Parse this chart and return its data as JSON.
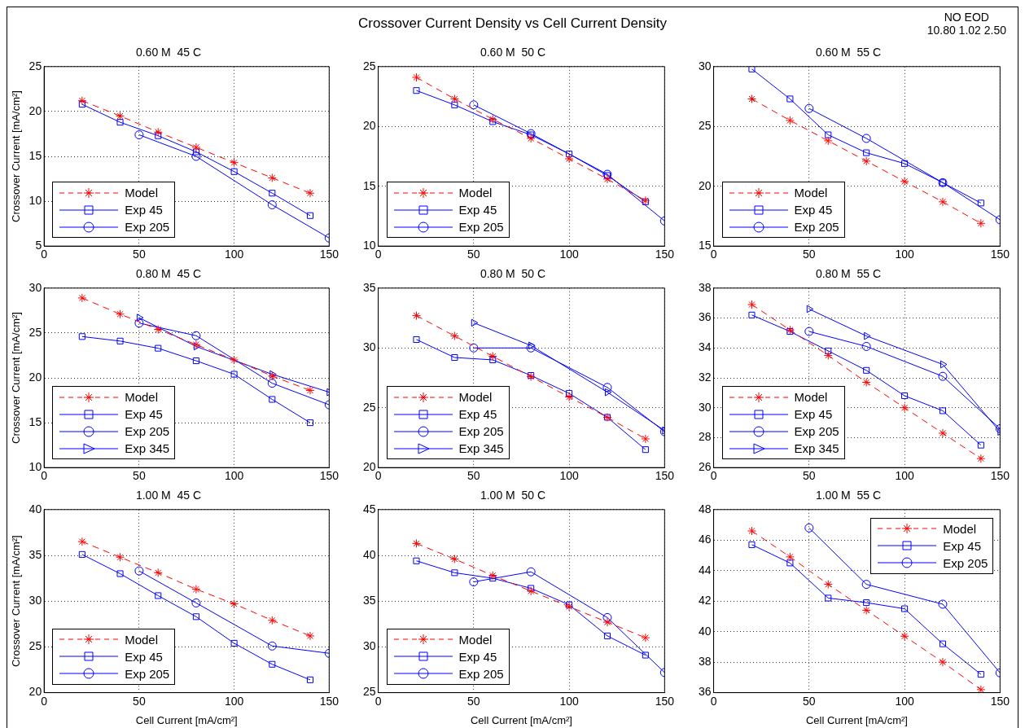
{
  "chart_data": [
    {
      "type": "line",
      "title": "0.60 M  45 C",
      "annotations": [
        "Crossover Current Density vs Cell Current Density"
      ],
      "ylabel": "Crossover Current [mA/cm²]",
      "xlim": [
        0,
        150
      ],
      "xticks": [
        0,
        50,
        100,
        150
      ],
      "ylim": [
        5,
        25
      ],
      "yticks": [
        5,
        10,
        15,
        20,
        25
      ],
      "grid": true,
      "legend": "bottom left",
      "series": [
        {
          "name": "Model",
          "color": "#ff0000",
          "marker": "cross",
          "line_style": "dashed",
          "x": [
            20,
            40,
            60,
            80,
            100,
            120,
            140
          ],
          "values": [
            21.2,
            19.5,
            17.7,
            16.0,
            14.3,
            12.6,
            10.9
          ]
        },
        {
          "name": "Exp 45",
          "color": "#0000ff",
          "marker": "square",
          "line_style": "solid",
          "x": [
            20,
            40,
            60,
            80,
            100,
            120,
            140
          ],
          "values": [
            20.8,
            18.8,
            17.3,
            15.5,
            13.3,
            10.9,
            8.4
          ]
        },
        {
          "name": "Exp 205",
          "color": "#0000ff",
          "marker": "circle",
          "line_style": "solid",
          "x": [
            50,
            80,
            120,
            150
          ],
          "values": [
            17.4,
            15.0,
            9.6,
            5.9
          ]
        }
      ]
    },
    {
      "type": "line",
      "title": "0.60 M  50 C",
      "xlim": [
        0,
        150
      ],
      "xticks": [
        0,
        50,
        100,
        150
      ],
      "ylim": [
        10,
        25
      ],
      "yticks": [
        10,
        15,
        20,
        25
      ],
      "grid": true,
      "legend": "bottom left",
      "series": [
        {
          "name": "Model",
          "color": "#ff0000",
          "marker": "cross",
          "line_style": "dashed",
          "x": [
            20,
            40,
            60,
            80,
            100,
            120,
            140
          ],
          "values": [
            24.1,
            22.3,
            20.6,
            19.0,
            17.3,
            15.6,
            13.8
          ]
        },
        {
          "name": "Exp 45",
          "color": "#0000ff",
          "marker": "square",
          "line_style": "solid",
          "x": [
            20,
            40,
            60,
            80,
            100,
            120,
            140
          ],
          "values": [
            23.0,
            21.8,
            20.4,
            19.3,
            17.7,
            15.9,
            13.7
          ]
        },
        {
          "name": "Exp 205",
          "color": "#0000ff",
          "marker": "circle",
          "line_style": "solid",
          "x": [
            50,
            80,
            120,
            150
          ],
          "values": [
            21.8,
            19.4,
            16.0,
            12.1
          ]
        }
      ]
    },
    {
      "type": "line",
      "title": "0.60 M  55 C",
      "annotations": [
        "NO EOD",
        "10.80  1.02  2.50"
      ],
      "xlim": [
        0,
        150
      ],
      "xticks": [
        0,
        50,
        100,
        150
      ],
      "ylim": [
        15,
        30
      ],
      "yticks": [
        15,
        20,
        25,
        30
      ],
      "grid": true,
      "legend": "bottom left",
      "series": [
        {
          "name": "Model",
          "color": "#ff0000",
          "marker": "cross",
          "line_style": "dashed",
          "x": [
            20,
            40,
            60,
            80,
            100,
            120,
            140
          ],
          "values": [
            27.3,
            25.5,
            23.8,
            22.1,
            20.4,
            18.7,
            16.9
          ]
        },
        {
          "name": "Exp 45",
          "color": "#0000ff",
          "marker": "square",
          "line_style": "solid",
          "x": [
            20,
            40,
            60,
            80,
            100,
            120,
            140
          ],
          "values": [
            29.8,
            27.3,
            24.3,
            22.8,
            21.9,
            20.3,
            18.6
          ]
        },
        {
          "name": "Exp 205",
          "color": "#0000ff",
          "marker": "circle",
          "line_style": "solid",
          "x": [
            50,
            80,
            120,
            150
          ],
          "values": [
            26.5,
            24.0,
            20.3,
            17.2
          ]
        }
      ]
    },
    {
      "type": "line",
      "title": "0.80 M  45 C",
      "ylabel": "Crossover Current [mA/cm²]",
      "xlim": [
        0,
        150
      ],
      "xticks": [
        0,
        50,
        100,
        150
      ],
      "ylim": [
        10,
        30
      ],
      "yticks": [
        10,
        15,
        20,
        25,
        30
      ],
      "grid": true,
      "legend": "bottom left",
      "series": [
        {
          "name": "Model",
          "color": "#ff0000",
          "marker": "cross",
          "line_style": "dashed",
          "x": [
            20,
            40,
            60,
            80,
            100,
            120,
            140
          ],
          "values": [
            28.9,
            27.1,
            25.4,
            23.7,
            22.0,
            20.2,
            18.6
          ]
        },
        {
          "name": "Exp 45",
          "color": "#0000ff",
          "marker": "square",
          "line_style": "solid",
          "x": [
            20,
            40,
            60,
            80,
            100,
            120,
            140
          ],
          "values": [
            24.6,
            24.1,
            23.3,
            21.9,
            20.4,
            17.6,
            15.0
          ]
        },
        {
          "name": "Exp 205",
          "color": "#0000ff",
          "marker": "circle",
          "line_style": "solid",
          "x": [
            50,
            80,
            120,
            150
          ],
          "values": [
            26.1,
            24.7,
            19.4,
            17.0
          ]
        },
        {
          "name": "Exp 345",
          "color": "#0000ff",
          "marker": "triangle",
          "line_style": "solid",
          "x": [
            50,
            80,
            120,
            150
          ],
          "values": [
            26.7,
            23.5,
            20.4,
            18.4
          ]
        }
      ]
    },
    {
      "type": "line",
      "title": "0.80 M  50 C",
      "xlim": [
        0,
        150
      ],
      "xticks": [
        0,
        50,
        100,
        150
      ],
      "ylim": [
        20,
        35
      ],
      "yticks": [
        20,
        25,
        30,
        35
      ],
      "grid": true,
      "legend": "bottom left",
      "series": [
        {
          "name": "Model",
          "color": "#ff0000",
          "marker": "cross",
          "line_style": "dashed",
          "x": [
            20,
            40,
            60,
            80,
            100,
            120,
            140
          ],
          "values": [
            32.7,
            31.0,
            29.3,
            27.6,
            25.9,
            24.2,
            22.4
          ]
        },
        {
          "name": "Exp 45",
          "color": "#0000ff",
          "marker": "square",
          "line_style": "solid",
          "x": [
            20,
            40,
            60,
            80,
            100,
            120,
            140
          ],
          "values": [
            30.7,
            29.2,
            29.0,
            27.7,
            26.2,
            24.2,
            21.5
          ]
        },
        {
          "name": "Exp 205",
          "color": "#0000ff",
          "marker": "circle",
          "line_style": "solid",
          "x": [
            50,
            80,
            120,
            150
          ],
          "values": [
            30.0,
            30.0,
            26.7,
            23.0
          ]
        },
        {
          "name": "Exp 345",
          "color": "#0000ff",
          "marker": "triangle",
          "line_style": "solid",
          "x": [
            50,
            80,
            120,
            150
          ],
          "values": [
            32.1,
            30.2,
            26.3,
            23.1
          ]
        }
      ]
    },
    {
      "type": "line",
      "title": "0.80 M  55 C",
      "xlim": [
        0,
        150
      ],
      "xticks": [
        0,
        50,
        100,
        150
      ],
      "ylim": [
        26,
        38
      ],
      "yticks": [
        26,
        28,
        30,
        32,
        34,
        36,
        38
      ],
      "grid": true,
      "legend": "bottom left",
      "series": [
        {
          "name": "Model",
          "color": "#ff0000",
          "marker": "cross",
          "line_style": "dashed",
          "x": [
            20,
            40,
            60,
            80,
            100,
            120,
            140
          ],
          "values": [
            36.9,
            35.2,
            33.5,
            31.7,
            30.0,
            28.3,
            26.6
          ]
        },
        {
          "name": "Exp 45",
          "color": "#0000ff",
          "marker": "square",
          "line_style": "solid",
          "x": [
            20,
            40,
            60,
            80,
            100,
            120,
            140
          ],
          "values": [
            36.2,
            35.1,
            33.8,
            32.5,
            30.8,
            29.8,
            27.5
          ]
        },
        {
          "name": "Exp 205",
          "color": "#0000ff",
          "marker": "circle",
          "line_style": "solid",
          "x": [
            50,
            80,
            120,
            150
          ],
          "values": [
            35.1,
            34.1,
            32.1,
            28.6
          ]
        },
        {
          "name": "Exp 345",
          "color": "#0000ff",
          "marker": "triangle",
          "line_style": "solid",
          "x": [
            50,
            80,
            120,
            150
          ],
          "values": [
            36.6,
            34.8,
            32.9,
            28.4
          ]
        }
      ]
    },
    {
      "type": "line",
      "title": "1.00 M  45 C",
      "ylabel": "Crossover Current [mA/cm²]",
      "xlabel": "Cell Current [mA/cm²]",
      "xlim": [
        0,
        150
      ],
      "xticks": [
        0,
        50,
        100,
        150
      ],
      "ylim": [
        20,
        40
      ],
      "yticks": [
        20,
        25,
        30,
        35,
        40
      ],
      "grid": true,
      "legend": "bottom left",
      "series": [
        {
          "name": "Model",
          "color": "#ff0000",
          "marker": "cross",
          "line_style": "dashed",
          "x": [
            20,
            40,
            60,
            80,
            100,
            120,
            140
          ],
          "values": [
            36.5,
            34.8,
            33.1,
            31.3,
            29.7,
            27.9,
            26.2
          ]
        },
        {
          "name": "Exp 45",
          "color": "#0000ff",
          "marker": "square",
          "line_style": "solid",
          "x": [
            20,
            40,
            60,
            80,
            100,
            120,
            140
          ],
          "values": [
            35.1,
            33.0,
            30.6,
            28.3,
            25.4,
            23.1,
            21.4
          ]
        },
        {
          "name": "Exp 205",
          "color": "#0000ff",
          "marker": "circle",
          "line_style": "solid",
          "x": [
            50,
            80,
            120,
            150
          ],
          "values": [
            33.3,
            29.8,
            25.1,
            24.3
          ]
        }
      ]
    },
    {
      "type": "line",
      "title": "1.00 M  50 C",
      "xlabel": "Cell Current [mA/cm²]",
      "xlim": [
        0,
        150
      ],
      "xticks": [
        0,
        50,
        100,
        150
      ],
      "ylim": [
        25,
        45
      ],
      "yticks": [
        25,
        30,
        35,
        40,
        45
      ],
      "grid": true,
      "legend": "bottom left",
      "series": [
        {
          "name": "Model",
          "color": "#ff0000",
          "marker": "cross",
          "line_style": "dashed",
          "x": [
            20,
            40,
            60,
            80,
            100,
            120,
            140
          ],
          "values": [
            41.3,
            39.6,
            37.8,
            36.1,
            34.4,
            32.7,
            31.0
          ]
        },
        {
          "name": "Exp 45",
          "color": "#0000ff",
          "marker": "square",
          "line_style": "solid",
          "x": [
            20,
            40,
            60,
            80,
            100,
            120,
            140
          ],
          "values": [
            39.4,
            38.1,
            37.5,
            36.4,
            34.6,
            31.2,
            29.1
          ]
        },
        {
          "name": "Exp 205",
          "color": "#0000ff",
          "marker": "circle",
          "line_style": "solid",
          "x": [
            50,
            80,
            120,
            150
          ],
          "values": [
            37.1,
            38.2,
            33.2,
            27.2
          ]
        }
      ]
    },
    {
      "type": "line",
      "title": "1.00 M  55 C",
      "xlabel": "Cell Current [mA/cm²]",
      "xlim": [
        0,
        150
      ],
      "xticks": [
        0,
        50,
        100,
        150
      ],
      "ylim": [
        36,
        48
      ],
      "yticks": [
        36,
        38,
        40,
        42,
        44,
        46,
        48
      ],
      "grid": true,
      "legend": "top right",
      "series": [
        {
          "name": "Model",
          "color": "#ff0000",
          "marker": "cross",
          "line_style": "dashed",
          "x": [
            20,
            40,
            60,
            80,
            100,
            120,
            140
          ],
          "values": [
            46.6,
            44.9,
            43.1,
            41.4,
            39.7,
            38.0,
            36.2
          ]
        },
        {
          "name": "Exp 45",
          "color": "#0000ff",
          "marker": "square",
          "line_style": "solid",
          "x": [
            20,
            40,
            60,
            80,
            100,
            120,
            140
          ],
          "values": [
            45.7,
            44.5,
            42.2,
            41.9,
            41.5,
            39.2,
            37.2
          ]
        },
        {
          "name": "Exp 205",
          "color": "#0000ff",
          "marker": "circle",
          "line_style": "solid",
          "x": [
            50,
            80,
            120,
            150
          ],
          "values": [
            46.8,
            43.1,
            41.8,
            37.3
          ]
        }
      ]
    }
  ]
}
